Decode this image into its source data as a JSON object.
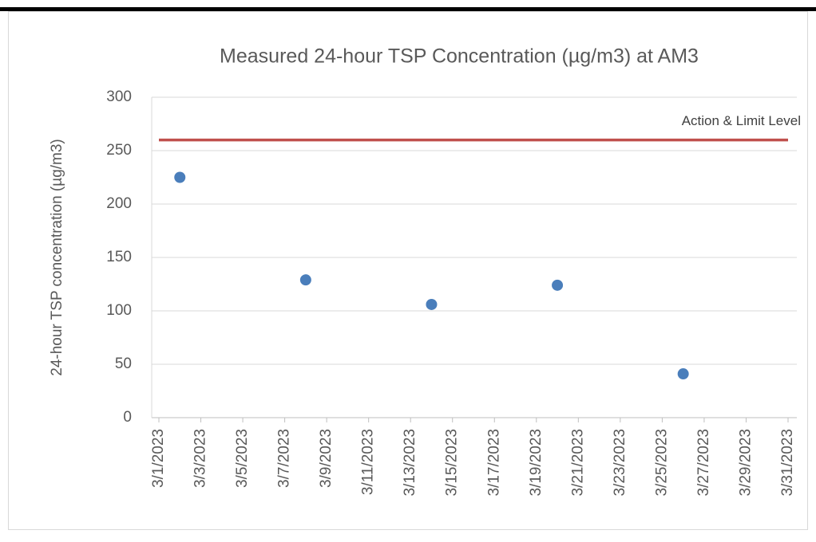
{
  "chart_data": {
    "type": "scatter",
    "title": "Measured 24-hour TSP Concentration (µg/m3) at AM3",
    "y_label": "24-hour TSP concentration (µg/m3)",
    "xlim": [
      "3/1/2023",
      "3/31/2023"
    ],
    "xticks": [
      "3/1/2023",
      "3/3/2023",
      "3/5/2023",
      "3/7/2023",
      "3/9/2023",
      "3/11/2023",
      "3/13/2023",
      "3/15/2023",
      "3/17/2023",
      "3/19/2023",
      "3/21/2023",
      "3/23/2023",
      "3/25/2023",
      "3/27/2023",
      "3/29/2023",
      "3/31/2023"
    ],
    "ylim": [
      0,
      300
    ],
    "yticks": [
      0,
      50,
      100,
      150,
      200,
      250,
      300
    ],
    "grid": true,
    "series": [
      {
        "type": "scatter",
        "color": "#4a7ebb",
        "x": [
          "3/2/2023",
          "3/8/2023",
          "3/14/2023",
          "3/20/2023",
          "3/26/2023"
        ],
        "values": [
          225,
          129,
          106,
          124,
          41
        ]
      },
      {
        "type": "line",
        "name": "Action & Limit Level",
        "color": "#c0504d",
        "x": [
          "3/1/2023",
          "3/31/2023"
        ],
        "values": [
          260,
          260
        ]
      }
    ]
  }
}
